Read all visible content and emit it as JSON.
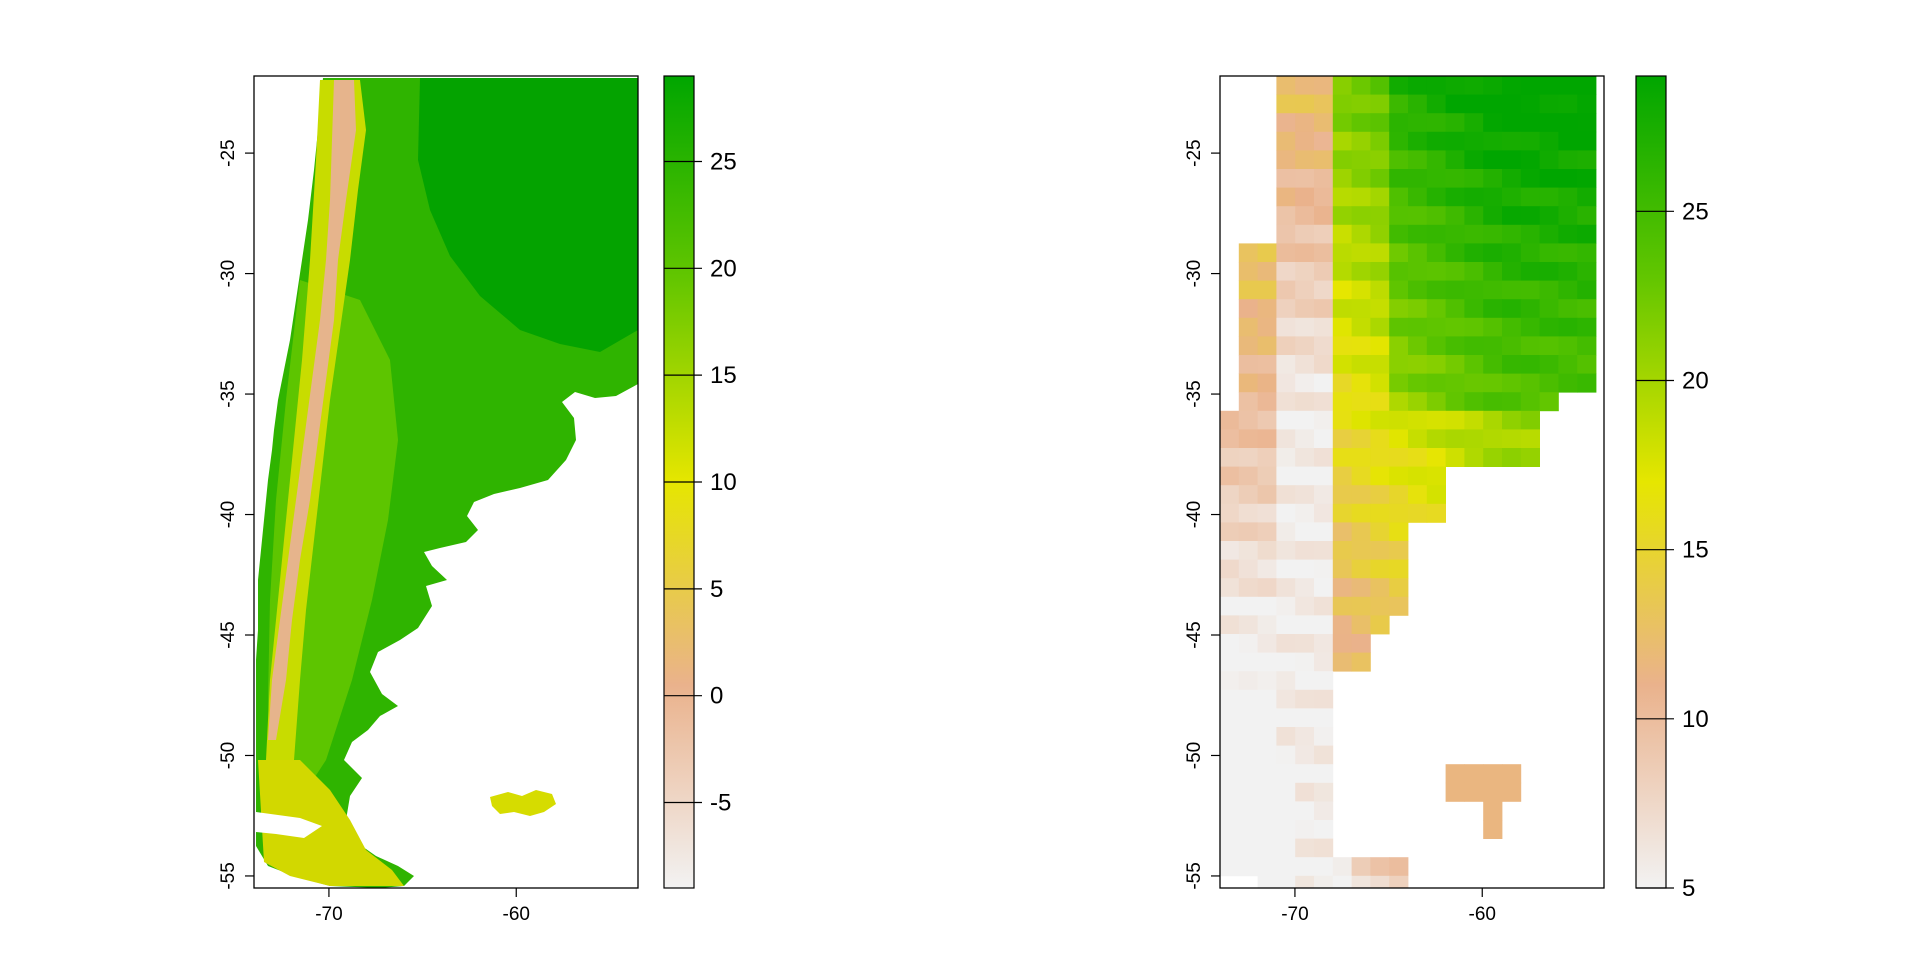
{
  "chart_data": [
    {
      "type": "heatmap",
      "title": "",
      "xlabel": "",
      "ylabel": "",
      "xlim": [
        -74,
        -53.5
      ],
      "ylim": [
        -55.5,
        -21.8
      ],
      "x_ticks": [
        -70,
        -60
      ],
      "x_tick_labels": [
        "-70",
        "-60"
      ],
      "y_ticks": [
        -25,
        -30,
        -35,
        -40,
        -45,
        -50,
        -55
      ],
      "y_tick_labels": [
        "-25",
        "-30",
        "-35",
        "-40",
        "-45",
        "-50",
        "-55"
      ],
      "legend": {
        "placement": "right",
        "range": [
          -9,
          29
        ],
        "ticks": [
          -5,
          0,
          5,
          10,
          15,
          20,
          25
        ],
        "tick_labels": [
          "-5",
          "0",
          "5",
          "10",
          "15",
          "20",
          "25"
        ],
        "color_stops": [
          "#f2f2f2",
          "#eab28c",
          "#e6e600",
          "#63c600",
          "#00a600"
        ]
      }
    },
    {
      "type": "heatmap",
      "title": "",
      "xlabel": "",
      "ylabel": "",
      "xlim": [
        -74,
        -53.5
      ],
      "ylim": [
        -55.5,
        -21.8
      ],
      "x_ticks": [
        -70,
        -60
      ],
      "x_tick_labels": [
        "-70",
        "-60"
      ],
      "y_ticks": [
        -25,
        -30,
        -35,
        -40,
        -45,
        -50,
        -55
      ],
      "y_tick_labels": [
        "-25",
        "-30",
        "-35",
        "-40",
        "-45",
        "-50",
        "-55"
      ],
      "legend": {
        "placement": "right",
        "range": [
          5,
          29
        ],
        "ticks": [
          5,
          10,
          15,
          20,
          25
        ],
        "tick_labels": [
          "5",
          "10",
          "15",
          "20",
          "25"
        ],
        "color_stops": [
          "#f2f2f2",
          "#eab28c",
          "#e6e600",
          "#63c600",
          "#00a600"
        ]
      }
    }
  ]
}
